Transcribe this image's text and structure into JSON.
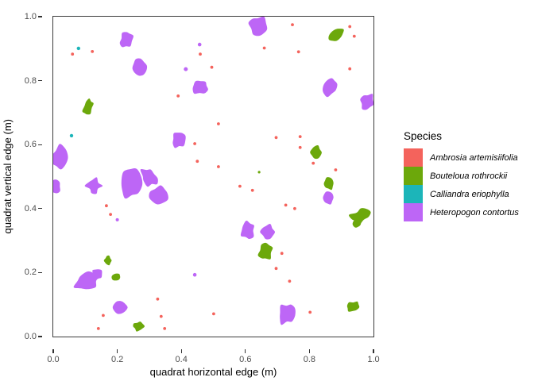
{
  "legend": {
    "title": "Species",
    "entries": [
      {
        "label": "Ambrosia artemisiifolia",
        "color": "#F4635C"
      },
      {
        "label": "Bouteloua rothrockii",
        "color": "#6CA80B"
      },
      {
        "label": "Calliandra eriophylla",
        "color": "#1CB5B9"
      },
      {
        "label": "Heteropogon contortus",
        "color": "#BD66F6"
      }
    ]
  },
  "style": {
    "panel_border_color": "#3B3B3B",
    "tick_color": "#333333",
    "tick_label_color": "#4D4D4D",
    "background": "#ffffff"
  },
  "chart_data": {
    "type": "scatter",
    "title": "",
    "xlabel": "quadrat horizontal edge (m)",
    "ylabel": "quadrat vertical edge (m)",
    "xlim": [
      0,
      1
    ],
    "ylim": [
      0,
      1
    ],
    "grid": false,
    "legend_position": "right",
    "x_ticks": {
      "values": [
        0,
        0.2,
        0.4,
        0.6,
        0.8,
        1.0
      ],
      "labels": [
        "0.0",
        "0.2",
        "0.4",
        "0.6",
        "0.8",
        "1.0"
      ]
    },
    "y_ticks": {
      "values": [
        0,
        0.2,
        0.4,
        0.6,
        0.8,
        1.0
      ],
      "labels": [
        "0.0",
        "0.2",
        "0.4",
        "0.6",
        "0.8",
        "1.0"
      ]
    },
    "series": [
      {
        "name": "Ambrosia artemisiifolia",
        "color": "#F4635C",
        "marker": "point",
        "dot_r": 1.9,
        "dots": [
          [
            0.06,
            0.883
          ],
          [
            0.122,
            0.891
          ],
          [
            0.459,
            0.883
          ],
          [
            0.659,
            0.902
          ],
          [
            0.747,
            0.975
          ],
          [
            0.926,
            0.969
          ],
          [
            0.94,
            0.939
          ],
          [
            0.766,
            0.89
          ],
          [
            0.495,
            0.842
          ],
          [
            0.926,
            0.837
          ],
          [
            0.39,
            0.752
          ],
          [
            0.516,
            0.665
          ],
          [
            0.696,
            0.622
          ],
          [
            0.771,
            0.625
          ],
          [
            0.771,
            0.591
          ],
          [
            0.812,
            0.542
          ],
          [
            0.442,
            0.603
          ],
          [
            0.45,
            0.548
          ],
          [
            0.516,
            0.531
          ],
          [
            0.882,
            0.521
          ],
          [
            0.583,
            0.47
          ],
          [
            0.622,
            0.457
          ],
          [
            0.726,
            0.411
          ],
          [
            0.754,
            0.4
          ],
          [
            0.166,
            0.409
          ],
          [
            0.179,
            0.382
          ],
          [
            0.714,
            0.26
          ],
          [
            0.696,
            0.213
          ],
          [
            0.738,
            0.173
          ],
          [
            0.326,
            0.117
          ],
          [
            0.802,
            0.076
          ],
          [
            0.501,
            0.071
          ],
          [
            0.156,
            0.066
          ],
          [
            0.337,
            0.063
          ],
          [
            0.141,
            0.025
          ],
          [
            0.348,
            0.025
          ]
        ],
        "patches": []
      },
      {
        "name": "Bouteloua rothrockii",
        "color": "#6CA80B",
        "marker": "patch",
        "dot_r": 1.6,
        "dots": [
          [
            0.643,
            0.514,
            1.6
          ]
        ],
        "patches": [
          {
            "x": 0.883,
            "y": 0.943,
            "rx": 0.026,
            "ry": 0.016,
            "rot": -35,
            "seed": 31,
            "jit": 0.18
          },
          {
            "x": 0.109,
            "y": 0.717,
            "rx": 0.014,
            "ry": 0.025,
            "rot": 18,
            "seed": 32,
            "jit": 0.2
          },
          {
            "x": 0.821,
            "y": 0.576,
            "rx": 0.017,
            "ry": 0.02,
            "rot": 0,
            "seed": 33,
            "jit": 0.22
          },
          {
            "x": 0.861,
            "y": 0.479,
            "rx": 0.015,
            "ry": 0.019,
            "rot": -8,
            "seed": 34,
            "jit": 0.22
          },
          {
            "x": 0.958,
            "y": 0.377,
            "rx": 0.03,
            "ry": 0.02,
            "rot": -20,
            "seed": 35,
            "jit": 0.32
          },
          {
            "x": 0.948,
            "y": 0.355,
            "rx": 0.012,
            "ry": 0.015,
            "rot": 30,
            "seed": 36,
            "jit": 0.25
          },
          {
            "x": 0.663,
            "y": 0.266,
            "rx": 0.021,
            "ry": 0.026,
            "rot": 15,
            "seed": 37,
            "jit": 0.25
          },
          {
            "x": 0.171,
            "y": 0.238,
            "rx": 0.011,
            "ry": 0.014,
            "rot": 0,
            "seed": 38,
            "jit": 0.2
          },
          {
            "x": 0.196,
            "y": 0.186,
            "rx": 0.014,
            "ry": 0.011,
            "rot": -15,
            "seed": 39,
            "jit": 0.2
          },
          {
            "x": 0.266,
            "y": 0.032,
            "rx": 0.016,
            "ry": 0.014,
            "rot": 0,
            "seed": 40,
            "jit": 0.22
          },
          {
            "x": 0.936,
            "y": 0.094,
            "rx": 0.02,
            "ry": 0.015,
            "rot": -20,
            "seed": 41,
            "jit": 0.22
          }
        ]
      },
      {
        "name": "Calliandra eriophylla",
        "color": "#1CB5B9",
        "marker": "point",
        "dot_r": 2.2,
        "dots": [
          [
            0.079,
            0.901
          ],
          [
            0.057,
            0.628
          ]
        ],
        "patches": []
      },
      {
        "name": "Heteropogon contortus",
        "color": "#BD66F6",
        "marker": "patch",
        "dot_r": 2.2,
        "dots": [
          [
            0.457,
            0.913,
            2.3
          ],
          [
            0.414,
            0.836,
            2.5
          ],
          [
            0.2,
            0.365,
            2.0
          ],
          [
            0.442,
            0.193,
            2.3
          ]
        ],
        "patches": [
          {
            "x": 0.64,
            "y": 0.97,
            "rx": 0.027,
            "ry": 0.03,
            "rot": -20,
            "seed": 11,
            "jit": 0.3
          },
          {
            "x": 0.228,
            "y": 0.928,
            "rx": 0.019,
            "ry": 0.025,
            "rot": 15,
            "seed": 2,
            "jit": 0.2
          },
          {
            "x": 0.27,
            "y": 0.842,
            "rx": 0.022,
            "ry": 0.027,
            "rot": -10,
            "seed": 3,
            "jit": 0.22
          },
          {
            "x": 0.459,
            "y": 0.779,
            "rx": 0.025,
            "ry": 0.021,
            "rot": -15,
            "seed": 4,
            "jit": 0.2
          },
          {
            "x": 0.98,
            "y": 0.734,
            "rx": 0.02,
            "ry": 0.025,
            "rot": 20,
            "seed": 5,
            "jit": 0.22
          },
          {
            "x": 0.863,
            "y": 0.779,
            "rx": 0.02,
            "ry": 0.029,
            "rot": 25,
            "seed": 6,
            "jit": 0.28
          },
          {
            "x": 0.392,
            "y": 0.615,
            "rx": 0.02,
            "ry": 0.025,
            "rot": 10,
            "seed": 7,
            "jit": 0.2
          },
          {
            "x": 0.022,
            "y": 0.561,
            "rx": 0.025,
            "ry": 0.036,
            "rot": 10,
            "seed": 8,
            "jit": 0.22
          },
          {
            "x": 0.007,
            "y": 0.469,
            "rx": 0.016,
            "ry": 0.022,
            "rot": 0,
            "seed": 9,
            "jit": 0.2
          },
          {
            "x": 0.127,
            "y": 0.471,
            "rx": 0.022,
            "ry": 0.022,
            "rot": 0,
            "seed": 10,
            "jit": 0.32
          },
          {
            "x": 0.243,
            "y": 0.481,
            "rx": 0.032,
            "ry": 0.047,
            "rot": 8,
            "seed": 12,
            "jit": 0.22
          },
          {
            "x": 0.3,
            "y": 0.498,
            "rx": 0.022,
            "ry": 0.03,
            "rot": -35,
            "seed": 13,
            "jit": 0.25
          },
          {
            "x": 0.33,
            "y": 0.441,
            "rx": 0.03,
            "ry": 0.027,
            "rot": -10,
            "seed": 14,
            "jit": 0.32
          },
          {
            "x": 0.107,
            "y": 0.174,
            "rx": 0.04,
            "ry": 0.025,
            "rot": -25,
            "seed": 15,
            "jit": 0.25
          },
          {
            "x": 0.137,
            "y": 0.195,
            "rx": 0.015,
            "ry": 0.017,
            "rot": 0,
            "seed": 16,
            "jit": 0.2
          },
          {
            "x": 0.208,
            "y": 0.091,
            "rx": 0.022,
            "ry": 0.02,
            "rot": 0,
            "seed": 17,
            "jit": 0.22
          },
          {
            "x": 0.608,
            "y": 0.332,
            "rx": 0.021,
            "ry": 0.027,
            "rot": 5,
            "seed": 18,
            "jit": 0.22
          },
          {
            "x": 0.67,
            "y": 0.327,
            "rx": 0.021,
            "ry": 0.022,
            "rot": 0,
            "seed": 19,
            "jit": 0.22
          },
          {
            "x": 0.859,
            "y": 0.434,
            "rx": 0.016,
            "ry": 0.02,
            "rot": -5,
            "seed": 20,
            "jit": 0.2
          },
          {
            "x": 0.729,
            "y": 0.071,
            "rx": 0.024,
            "ry": 0.032,
            "rot": 12,
            "seed": 21,
            "jit": 0.25
          }
        ]
      }
    ]
  }
}
